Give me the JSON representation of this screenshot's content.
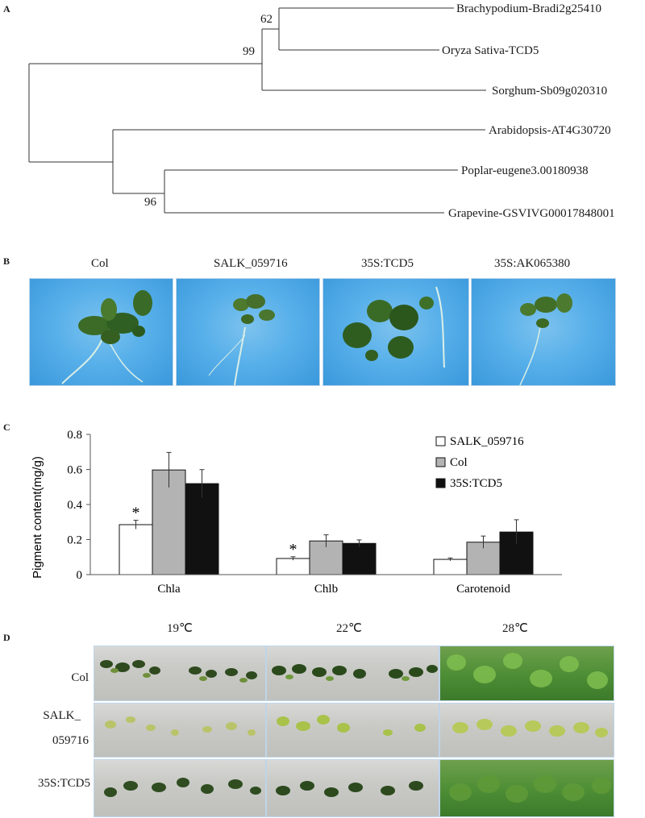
{
  "panels": {
    "a": "A",
    "b": "B",
    "c": "C",
    "d": "D"
  },
  "tree": {
    "leaves": [
      "Brachypodium-Bradi2g25410",
      "Oryza Sativa-TCD5",
      "Sorghum-Sb09g020310",
      "Arabidopsis-AT4G30720",
      "Poplar-eugene3.00180938",
      "Grapevine-GSVIVG00017848001"
    ],
    "bootstraps": [
      "62",
      "99",
      "96"
    ]
  },
  "seedlings": {
    "columns": [
      "Col",
      "SALK_059716",
      "35S:TCD5",
      "35S:AK065380"
    ]
  },
  "chart_data": {
    "type": "bar",
    "categories": [
      "Chla",
      "Chlb",
      "Carotenoid"
    ],
    "series": [
      {
        "name": "SALK_059716",
        "values": [
          0.285,
          0.092,
          0.087
        ],
        "errors": [
          0.025,
          0.01,
          0.008
        ],
        "color": "#ffffff"
      },
      {
        "name": "Col",
        "values": [
          0.597,
          0.192,
          0.185
        ],
        "errors": [
          0.1,
          0.035,
          0.035
        ],
        "color": "#b3b3b3"
      },
      {
        "name": "35S:TCD5",
        "values": [
          0.519,
          0.178,
          0.243
        ],
        "errors": [
          0.08,
          0.02,
          0.07
        ],
        "color": "#111111"
      }
    ],
    "significance": [
      [
        "*",
        "*",
        ""
      ],
      [
        "",
        "",
        ""
      ],
      [
        "",
        "",
        ""
      ]
    ],
    "ylabel": "Pigment content(mg/g)",
    "xlabel": "",
    "ylim": [
      0,
      0.8
    ],
    "yticks": [
      "0",
      "0.2",
      "0.4",
      "0.6",
      "0.8"
    ],
    "legend": "top-right",
    "grid": false
  },
  "temperature": {
    "columns": [
      "19℃",
      "22℃",
      "28℃"
    ],
    "rows": [
      "Col",
      "SALK_\n059716",
      "35S:TCD5"
    ],
    "row_lines": [
      [
        "Col"
      ],
      [
        "SALK_",
        "059716"
      ],
      [
        "35S:TCD5"
      ]
    ]
  }
}
